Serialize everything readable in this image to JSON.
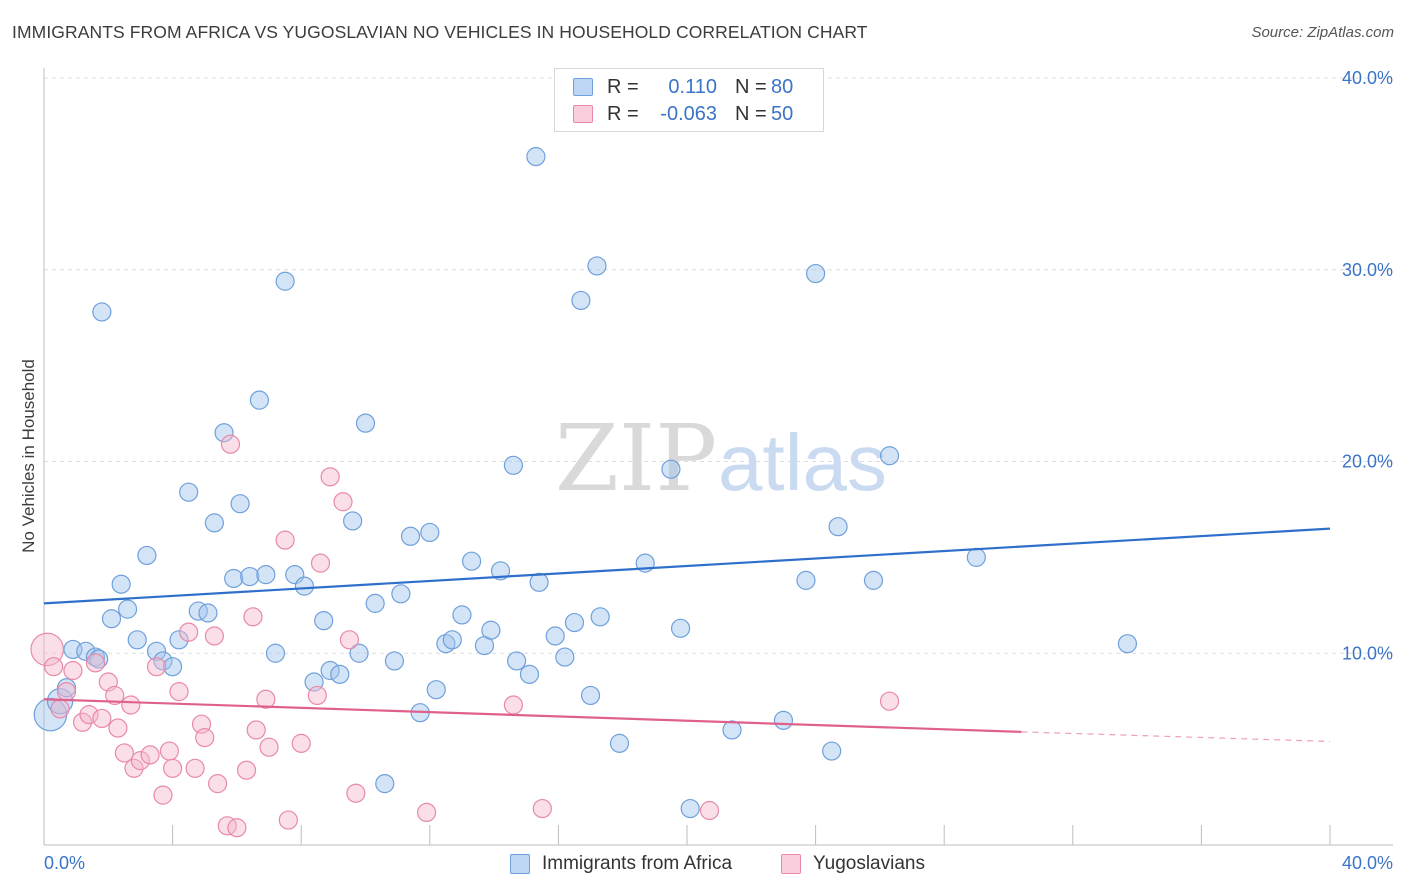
{
  "title": "IMMIGRANTS FROM AFRICA VS YUGOSLAVIAN NO VEHICLES IN HOUSEHOLD CORRELATION CHART",
  "source": "Source: ZipAtlas.com",
  "watermark": {
    "zip": "ZIP",
    "atlas": "atlas"
  },
  "colors": {
    "blue": "#6fa0dc",
    "blue_fill": "rgba(160,196,238,0.45)",
    "blue_line": "#2f6fcc",
    "pink": "#e889a8",
    "pink_fill": "rgba(245,185,205,0.45)",
    "pink_line": "#e0608c",
    "grid": "#dcdcdc",
    "tick_text": "#3b74c7"
  },
  "legend": {
    "rows": [
      {
        "r_label": "R =",
        "r_value": "0.110",
        "n_label": "N =",
        "n_value": "80"
      },
      {
        "r_label": "R =",
        "r_value": "-0.063",
        "n_label": "N =",
        "n_value": "50"
      }
    ]
  },
  "bottom_legend": {
    "series1": "Immigrants from Africa",
    "series2": "Yugoslavians"
  },
  "chart_data": {
    "type": "scatter",
    "title": "IMMIGRANTS FROM AFRICA VS YUGOSLAVIAN NO VEHICLES IN HOUSEHOLD CORRELATION CHART",
    "xlabel": "",
    "ylabel": "No Vehicles in Household",
    "xlim": [
      0,
      40
    ],
    "ylim": [
      0,
      40
    ],
    "x_tick_labels": [
      "0.0%",
      "40.0%"
    ],
    "y_ticks": [
      10,
      20,
      30,
      40
    ],
    "y_tick_labels": [
      "10.0%",
      "20.0%",
      "30.0%",
      "40.0%"
    ],
    "grid": true,
    "legend_position": "top-center",
    "series": [
      {
        "name": "Immigrants from Africa",
        "r": 0.11,
        "n": 80,
        "trend": {
          "x": [
            0,
            40
          ],
          "y": [
            12.6,
            16.5
          ]
        },
        "points": [
          [
            0.2,
            6.8,
            1.8
          ],
          [
            0.5,
            7.5,
            1.4
          ],
          [
            0.7,
            8.2,
            1
          ],
          [
            0.9,
            10.2,
            1
          ],
          [
            1.3,
            10.1,
            1
          ],
          [
            1.6,
            9.8,
            1
          ],
          [
            1.8,
            27.8,
            1
          ],
          [
            2.1,
            11.8,
            1
          ],
          [
            2.4,
            13.6,
            1
          ],
          [
            2.6,
            12.3,
            1
          ],
          [
            2.9,
            10.7,
            1
          ],
          [
            3.2,
            15.1,
            1
          ],
          [
            3.5,
            10.1,
            1
          ],
          [
            3.7,
            9.6,
            1
          ],
          [
            4.0,
            9.3,
            1
          ],
          [
            4.2,
            10.7,
            1
          ],
          [
            4.5,
            18.4,
            1
          ],
          [
            4.8,
            12.2,
            1
          ],
          [
            5.1,
            12.1,
            1
          ],
          [
            5.3,
            16.8,
            1
          ],
          [
            5.6,
            21.5,
            1
          ],
          [
            5.9,
            13.9,
            1
          ],
          [
            6.1,
            17.8,
            1
          ],
          [
            6.4,
            14.0,
            1
          ],
          [
            6.7,
            23.2,
            1
          ],
          [
            6.9,
            14.1,
            1
          ],
          [
            7.2,
            10.0,
            1
          ],
          [
            7.5,
            29.4,
            1
          ],
          [
            7.8,
            14.1,
            1
          ],
          [
            8.1,
            13.5,
            1
          ],
          [
            8.4,
            8.5,
            1
          ],
          [
            8.7,
            11.7,
            1
          ],
          [
            8.9,
            9.1,
            1
          ],
          [
            9.2,
            8.9,
            1
          ],
          [
            9.6,
            16.9,
            1
          ],
          [
            9.8,
            10.0,
            1
          ],
          [
            10.0,
            22.0,
            1
          ],
          [
            10.3,
            12.6,
            1
          ],
          [
            10.6,
            3.2,
            1
          ],
          [
            10.9,
            9.6,
            1
          ],
          [
            11.1,
            13.1,
            1
          ],
          [
            11.4,
            16.1,
            1
          ],
          [
            11.7,
            6.9,
            1
          ],
          [
            12.0,
            16.3,
            1
          ],
          [
            12.2,
            8.1,
            1
          ],
          [
            12.5,
            10.5,
            1
          ],
          [
            12.7,
            10.7,
            1
          ],
          [
            13.0,
            12.0,
            1
          ],
          [
            13.3,
            14.8,
            1
          ],
          [
            13.7,
            10.4,
            1
          ],
          [
            13.9,
            11.2,
            1
          ],
          [
            14.2,
            14.3,
            1
          ],
          [
            14.7,
            9.6,
            1
          ],
          [
            14.6,
            19.8,
            1
          ],
          [
            15.1,
            8.9,
            1
          ],
          [
            15.4,
            13.7,
            1
          ],
          [
            15.3,
            35.9,
            1
          ],
          [
            15.9,
            10.9,
            1
          ],
          [
            16.2,
            9.8,
            1
          ],
          [
            16.5,
            11.6,
            1
          ],
          [
            16.7,
            28.4,
            1
          ],
          [
            17.0,
            7.8,
            1
          ],
          [
            17.2,
            30.2,
            1
          ],
          [
            17.3,
            11.9,
            1
          ],
          [
            17.9,
            5.3,
            1
          ],
          [
            18.7,
            14.7,
            1
          ],
          [
            19.5,
            19.6,
            1
          ],
          [
            19.8,
            11.3,
            1
          ],
          [
            20.1,
            1.9,
            1
          ],
          [
            21.4,
            6.0,
            1
          ],
          [
            23.0,
            6.5,
            1
          ],
          [
            23.7,
            13.8,
            1
          ],
          [
            24.0,
            29.8,
            1
          ],
          [
            24.5,
            4.9,
            1
          ],
          [
            24.7,
            16.6,
            1
          ],
          [
            25.8,
            13.8,
            1
          ],
          [
            26.3,
            20.3,
            1
          ],
          [
            29.0,
            15.0,
            1
          ],
          [
            33.7,
            10.5,
            1
          ],
          [
            1.7,
            9.7,
            1
          ]
        ]
      },
      {
        "name": "Yugoslavians",
        "r": -0.063,
        "n": 50,
        "trend": {
          "x": [
            0,
            30.4
          ],
          "y": [
            7.6,
            5.9
          ]
        },
        "trend_dashed": {
          "x": [
            30.4,
            40
          ],
          "y": [
            5.9,
            5.4
          ]
        },
        "points": [
          [
            0.1,
            10.2,
            1.8
          ],
          [
            0.3,
            9.3,
            1
          ],
          [
            0.5,
            7.1,
            1
          ],
          [
            0.7,
            8.0,
            1
          ],
          [
            0.9,
            9.1,
            1
          ],
          [
            1.2,
            6.4,
            1
          ],
          [
            1.4,
            6.8,
            1
          ],
          [
            1.6,
            9.5,
            1
          ],
          [
            1.8,
            6.6,
            1
          ],
          [
            2.0,
            8.5,
            1
          ],
          [
            2.2,
            7.8,
            1
          ],
          [
            2.3,
            6.1,
            1
          ],
          [
            2.5,
            4.8,
            1
          ],
          [
            2.7,
            7.3,
            1
          ],
          [
            2.8,
            4.0,
            1
          ],
          [
            3.0,
            4.4,
            1
          ],
          [
            3.3,
            4.7,
            1
          ],
          [
            3.5,
            9.3,
            1
          ],
          [
            3.7,
            2.6,
            1
          ],
          [
            3.9,
            4.9,
            1
          ],
          [
            4.0,
            4.0,
            1
          ],
          [
            4.2,
            8.0,
            1
          ],
          [
            4.5,
            11.1,
            1
          ],
          [
            4.7,
            4.0,
            1
          ],
          [
            4.9,
            6.3,
            1
          ],
          [
            5.0,
            5.6,
            1
          ],
          [
            5.3,
            10.9,
            1
          ],
          [
            5.4,
            3.2,
            1
          ],
          [
            5.7,
            1.0,
            1
          ],
          [
            5.8,
            20.9,
            1
          ],
          [
            6.0,
            0.9,
            1
          ],
          [
            6.3,
            3.9,
            1
          ],
          [
            6.5,
            11.9,
            1
          ],
          [
            6.6,
            6.0,
            1
          ],
          [
            6.9,
            7.6,
            1
          ],
          [
            7.0,
            5.1,
            1
          ],
          [
            7.5,
            15.9,
            1
          ],
          [
            7.6,
            1.3,
            1
          ],
          [
            8.0,
            5.3,
            1
          ],
          [
            8.5,
            7.8,
            1
          ],
          [
            8.6,
            14.7,
            1
          ],
          [
            8.9,
            19.2,
            1
          ],
          [
            9.3,
            17.9,
            1
          ],
          [
            9.5,
            10.7,
            1
          ],
          [
            9.7,
            2.7,
            1
          ],
          [
            11.9,
            1.7,
            1
          ],
          [
            14.6,
            7.3,
            1
          ],
          [
            15.5,
            1.9,
            1
          ],
          [
            20.7,
            1.8,
            1
          ],
          [
            26.3,
            7.5,
            1
          ]
        ]
      }
    ]
  }
}
